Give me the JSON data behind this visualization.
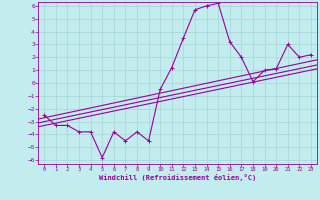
{
  "xlabel": "Windchill (Refroidissement éolien,°C)",
  "xlim": [
    0,
    23
  ],
  "ylim": [
    -6,
    6
  ],
  "xticks": [
    0,
    1,
    2,
    3,
    4,
    5,
    6,
    7,
    8,
    9,
    10,
    11,
    12,
    13,
    14,
    15,
    16,
    17,
    18,
    19,
    20,
    21,
    22,
    23
  ],
  "yticks": [
    -6,
    -5,
    -4,
    -3,
    -2,
    -1,
    0,
    1,
    2,
    3,
    4,
    5,
    6
  ],
  "background_color": "#c2ecee",
  "grid_color": "#a8d8dc",
  "line_color": "#990099",
  "main_line_x": [
    0,
    1,
    2,
    3,
    4,
    5,
    6,
    7,
    8,
    9,
    10,
    11,
    12,
    13,
    14,
    15,
    16,
    17,
    18,
    19,
    20,
    21,
    22,
    23
  ],
  "main_line_y": [
    -2.5,
    -3.3,
    -3.3,
    -3.8,
    -3.8,
    -5.8,
    -3.8,
    -4.5,
    -3.8,
    -4.5,
    -0.5,
    1.2,
    3.5,
    5.7,
    6.0,
    6.2,
    3.2,
    2.0,
    0.1,
    1.0,
    1.1,
    3.0,
    2.0,
    2.2
  ],
  "trend_lines": [
    [
      [
        -0.5,
        23.5
      ],
      [
        -3.4,
        1.1
      ]
    ],
    [
      [
        -0.5,
        23.5
      ],
      [
        -3.1,
        1.4
      ]
    ],
    [
      [
        -0.5,
        23.5
      ],
      [
        -2.8,
        1.8
      ]
    ]
  ]
}
